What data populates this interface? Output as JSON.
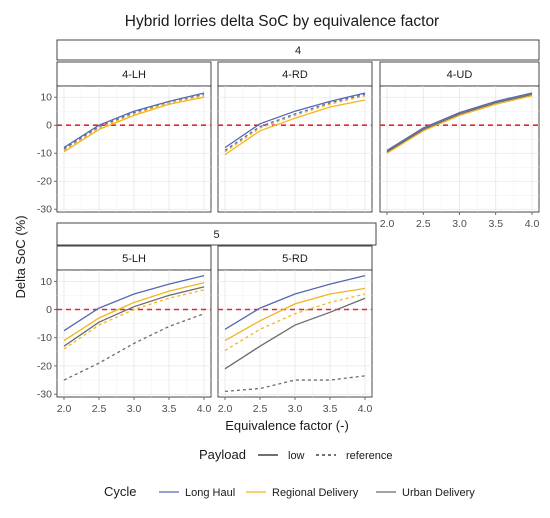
{
  "chart_data": {
    "type": "line",
    "title": "Hybrid lorries delta SoC by equivalence factor",
    "xlabel": "Equivalence factor (-)",
    "ylabel": "Delta SoC (%)",
    "x": [
      2.0,
      2.5,
      3.0,
      3.5,
      4.0
    ],
    "xticks": [
      "2.0",
      "2.5",
      "3.0",
      "3.5",
      "4.0"
    ],
    "xlim": [
      1.95,
      4.05
    ],
    "ylim": [
      -31,
      14
    ],
    "yticks": [
      -30,
      -20,
      -10,
      0,
      10
    ],
    "reference_line": {
      "y": 0,
      "color": "#e8262b",
      "style": "dashed"
    },
    "grid": true,
    "colors": {
      "Long Haul": "#5468b0",
      "Regional Delivery": "#f2b51d",
      "Urban Delivery": "#6b6b6b"
    },
    "groups": [
      {
        "group": "4",
        "panels": [
          {
            "panel": "4-LH",
            "series": [
              {
                "cycle": "Long Haul",
                "payload": "low",
                "values": [
                  -8,
                  0,
                  5,
                  8.5,
                  11.5
                ]
              },
              {
                "cycle": "Long Haul",
                "payload": "reference",
                "values": [
                  -8.5,
                  -0.5,
                  4.5,
                  8,
                  11
                ]
              },
              {
                "cycle": "Regional Delivery",
                "payload": "low",
                "values": [
                  -9.5,
                  -1.5,
                  3.5,
                  7.5,
                  10
                ]
              },
              {
                "cycle": "Regional Delivery",
                "payload": "reference",
                "values": [
                  -9,
                  -1,
                  4,
                  8,
                  10.5
                ]
              }
            ]
          },
          {
            "panel": "4-RD",
            "series": [
              {
                "cycle": "Long Haul",
                "payload": "low",
                "values": [
                  -8,
                  0.5,
                  5,
                  8.5,
                  11.5
                ]
              },
              {
                "cycle": "Long Haul",
                "payload": "reference",
                "values": [
                  -9,
                  -0.5,
                  4,
                  8,
                  11
                ]
              },
              {
                "cycle": "Regional Delivery",
                "payload": "low",
                "values": [
                  -10.5,
                  -2,
                  2.5,
                  6.5,
                  9
                ]
              },
              {
                "cycle": "Regional Delivery",
                "payload": "reference",
                "values": [
                  -9.5,
                  -1,
                  3.5,
                  7.5,
                  10.5
                ]
              }
            ]
          },
          {
            "panel": "4-UD",
            "series": [
              {
                "cycle": "Long Haul",
                "payload": "low",
                "values": [
                  -9,
                  -1,
                  4.5,
                  8.5,
                  11.5
                ]
              },
              {
                "cycle": "Long Haul",
                "payload": "reference",
                "values": [
                  -9.5,
                  -1.5,
                  4,
                  8,
                  11
                ]
              },
              {
                "cycle": "Regional Delivery",
                "payload": "low",
                "values": [
                  -10,
                  -2,
                  3.5,
                  7.5,
                  10.5
                ]
              },
              {
                "cycle": "Regional Delivery",
                "payload": "reference",
                "values": [
                  -9.5,
                  -1.5,
                  4,
                  8,
                  11
                ]
              },
              {
                "cycle": "Urban Delivery",
                "payload": "low",
                "values": [
                  -9.5,
                  -1.5,
                  4,
                  8,
                  11
                ]
              }
            ]
          }
        ]
      },
      {
        "group": "5",
        "panels": [
          {
            "panel": "5-LH",
            "series": [
              {
                "cycle": "Long Haul",
                "payload": "low",
                "values": [
                  -7.5,
                  0.5,
                  5.5,
                  9,
                  12
                ]
              },
              {
                "cycle": "Regional Delivery",
                "payload": "low",
                "values": [
                  -11,
                  -3,
                  2.5,
                  6.5,
                  9.5
                ]
              },
              {
                "cycle": "Regional Delivery",
                "payload": "reference",
                "values": [
                  -14,
                  -5.5,
                  0,
                  4,
                  7
                ]
              },
              {
                "cycle": "Urban Delivery",
                "payload": "low",
                "values": [
                  -13,
                  -4.5,
                  1,
                  5,
                  8
                ]
              },
              {
                "cycle": "Urban Delivery",
                "payload": "reference",
                "values": [
                  -25,
                  -19,
                  -12,
                  -6,
                  -1.5
                ]
              }
            ]
          },
          {
            "panel": "5-RD",
            "series": [
              {
                "cycle": "Long Haul",
                "payload": "low",
                "values": [
                  -7,
                  0.5,
                  5.5,
                  9,
                  12
                ]
              },
              {
                "cycle": "Regional Delivery",
                "payload": "low",
                "values": [
                  -11,
                  -4,
                  2,
                  5.5,
                  7.5
                ]
              },
              {
                "cycle": "Regional Delivery",
                "payload": "reference",
                "values": [
                  -14.5,
                  -7,
                  -1.5,
                  2.5,
                  5.5
                ]
              },
              {
                "cycle": "Urban Delivery",
                "payload": "low",
                "values": [
                  -21,
                  -13,
                  -5.5,
                  -1,
                  4
                ]
              },
              {
                "cycle": "Urban Delivery",
                "payload": "reference",
                "values": [
                  -29,
                  -28,
                  -25,
                  -25,
                  -23.5
                ]
              }
            ]
          }
        ]
      }
    ],
    "legend": {
      "position": "bottom",
      "payload": {
        "title": "Payload",
        "entries": [
          {
            "label": "low",
            "style": "solid"
          },
          {
            "label": "reference",
            "style": "dashed"
          }
        ]
      },
      "cycle": {
        "title": "Cycle",
        "entries": [
          "Long Haul",
          "Regional Delivery",
          "Urban Delivery"
        ]
      }
    }
  }
}
